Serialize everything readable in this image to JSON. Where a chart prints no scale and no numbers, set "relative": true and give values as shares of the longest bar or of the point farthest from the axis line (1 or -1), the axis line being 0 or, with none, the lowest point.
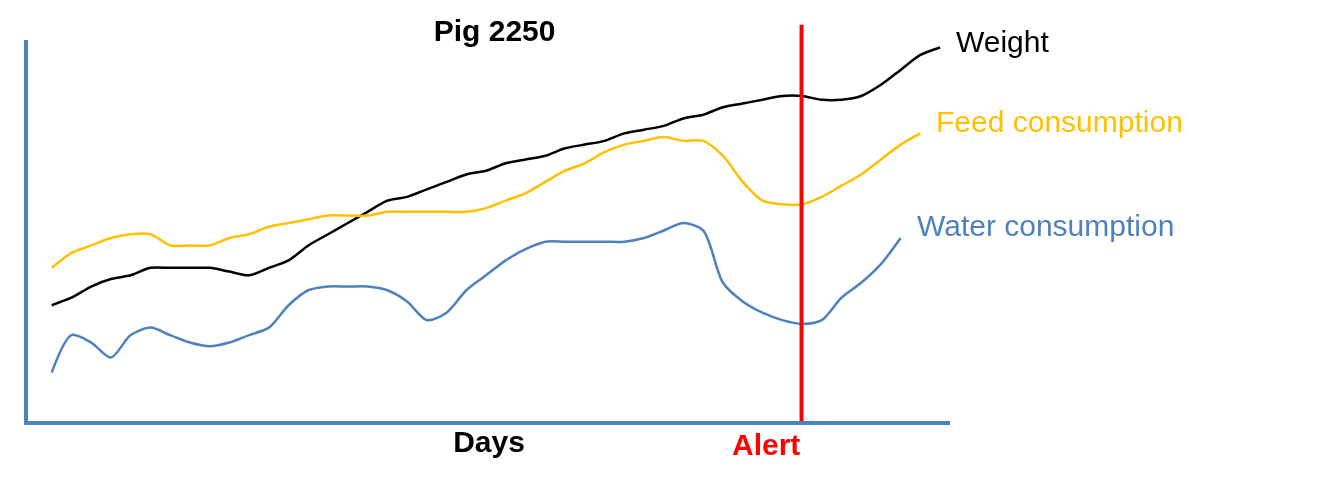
{
  "chart_data": {
    "type": "line",
    "relative": true,
    "title": "Pig 2250",
    "xlabel": "Days",
    "legend": false,
    "marker": "none",
    "line_style": "solid",
    "categories": [
      null,
      null,
      null,
      null,
      null,
      null,
      null,
      null,
      null,
      null,
      null,
      null,
      null,
      null,
      null,
      null,
      null,
      null,
      null,
      null,
      null,
      null,
      null,
      null,
      null,
      null,
      null,
      null,
      null,
      null,
      null,
      null,
      null,
      null,
      null,
      null,
      null,
      null,
      null,
      null,
      null,
      null,
      null,
      null,
      null,
      null
    ],
    "series": [
      {
        "name": "Weight",
        "color": "#000000",
        "values": [
          0.31,
          0.33,
          0.36,
          0.38,
          0.39,
          0.41,
          0.41,
          0.41,
          0.41,
          0.4,
          0.39,
          0.41,
          0.43,
          0.47,
          0.5,
          0.53,
          0.56,
          0.59,
          0.6,
          0.62,
          0.64,
          0.66,
          0.67,
          0.69,
          0.7,
          0.71,
          0.73,
          0.74,
          0.75,
          0.77,
          0.78,
          0.79,
          0.81,
          0.82,
          0.84,
          0.85,
          0.86,
          0.87,
          0.87,
          0.86,
          0.86,
          0.87,
          0.9,
          0.94,
          0.98,
          1
        ]
      },
      {
        "name": "Feed consumption",
        "color": "#ffc000",
        "values": [
          0.41,
          0.45,
          0.47,
          0.49,
          0.5,
          0.5,
          0.47,
          0.47,
          0.47,
          0.49,
          0.5,
          0.52,
          0.53,
          0.54,
          0.55,
          0.55,
          0.55,
          0.56,
          0.56,
          0.56,
          0.56,
          0.56,
          0.57,
          0.59,
          0.61,
          0.64,
          0.67,
          0.69,
          0.72,
          0.74,
          0.75,
          0.76,
          0.75,
          0.75,
          0.71,
          0.64,
          0.59,
          0.58,
          0.58,
          0.6,
          0.63,
          0.66,
          0.7,
          0.74,
          0.77,
          null
        ]
      },
      {
        "name": "Water consumption",
        "color": "#4f81bd",
        "values": [
          0.13,
          0.23,
          0.21,
          0.17,
          0.23,
          0.25,
          0.23,
          0.21,
          0.2,
          0.21,
          0.23,
          0.25,
          0.31,
          0.35,
          0.36,
          0.36,
          0.36,
          0.35,
          0.32,
          0.27,
          0.29,
          0.35,
          0.39,
          0.43,
          0.46,
          0.48,
          0.48,
          0.48,
          0.48,
          0.48,
          0.49,
          0.51,
          0.53,
          0.51,
          0.37,
          0.32,
          0.29,
          0.27,
          0.26,
          0.27,
          0.33,
          0.37,
          0.42,
          0.49,
          null,
          null
        ]
      }
    ],
    "annotations": [
      "Alert"
    ]
  }
}
